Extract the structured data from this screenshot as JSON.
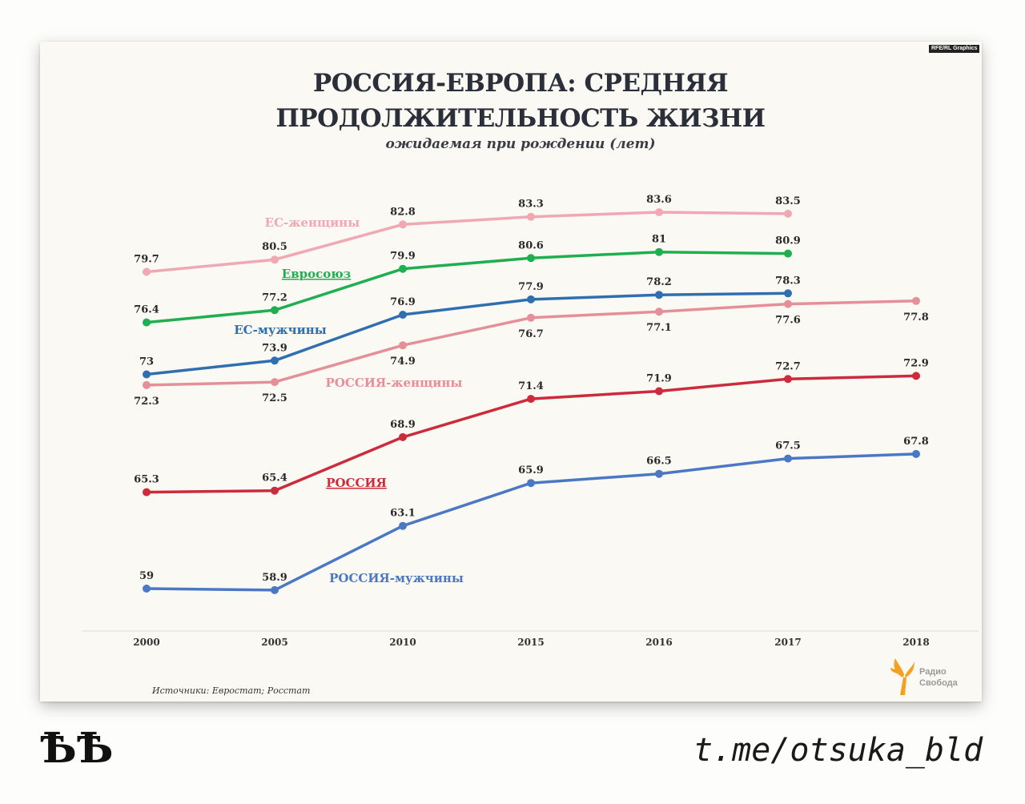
{
  "credit": "RFE/RL Graphics",
  "title_line1": "РОССИЯ-ЕВРОПА: СРЕДНЯЯ",
  "title_line2": "ПРОДОЛЖИТЕЛЬНОСТЬ ЖИЗНИ",
  "subtitle": "ожидаемая при рождении (лет)",
  "source": "Источники: Евростат; Росстат",
  "logo": {
    "line1": "Радио",
    "line2": "Свобода",
    "accent_color": "#f5a021"
  },
  "watermark_left": "ѢѢ",
  "watermark_right": "t.me/otsuka_bld",
  "chart_data": {
    "type": "line",
    "categories": [
      "2000",
      "2005",
      "2010",
      "2015",
      "2016",
      "2017",
      "2018"
    ],
    "ylim": [
      55,
      86
    ],
    "grid": false,
    "series": [
      {
        "name": "ЕС-женщины",
        "color": "#f0a8b2",
        "underline": false,
        "values": [
          79.7,
          80.5,
          82.8,
          83.3,
          83.6,
          83.5,
          null
        ]
      },
      {
        "name": "Евросоюз",
        "color": "#1fae50",
        "underline": true,
        "values": [
          76.4,
          77.2,
          79.9,
          80.6,
          81,
          80.9,
          null
        ]
      },
      {
        "name": "ЕС-мужчины",
        "color": "#2f6fb0",
        "underline": false,
        "values": [
          73,
          73.9,
          76.9,
          77.9,
          78.2,
          78.3,
          null
        ]
      },
      {
        "name": "РОССИЯ-женщины",
        "color": "#e58f99",
        "underline": false,
        "values": [
          72.3,
          72.5,
          74.9,
          76.7,
          77.1,
          77.6,
          77.8
        ]
      },
      {
        "name": "РОССИЯ",
        "color": "#cc2b3b",
        "underline": true,
        "values": [
          65.3,
          65.4,
          68.9,
          71.4,
          71.9,
          72.7,
          72.9
        ]
      },
      {
        "name": "РОССИЯ-мужчины",
        "color": "#4b78c4",
        "underline": false,
        "values": [
          59,
          58.9,
          63.1,
          65.9,
          66.5,
          67.5,
          67.8
        ]
      }
    ]
  }
}
